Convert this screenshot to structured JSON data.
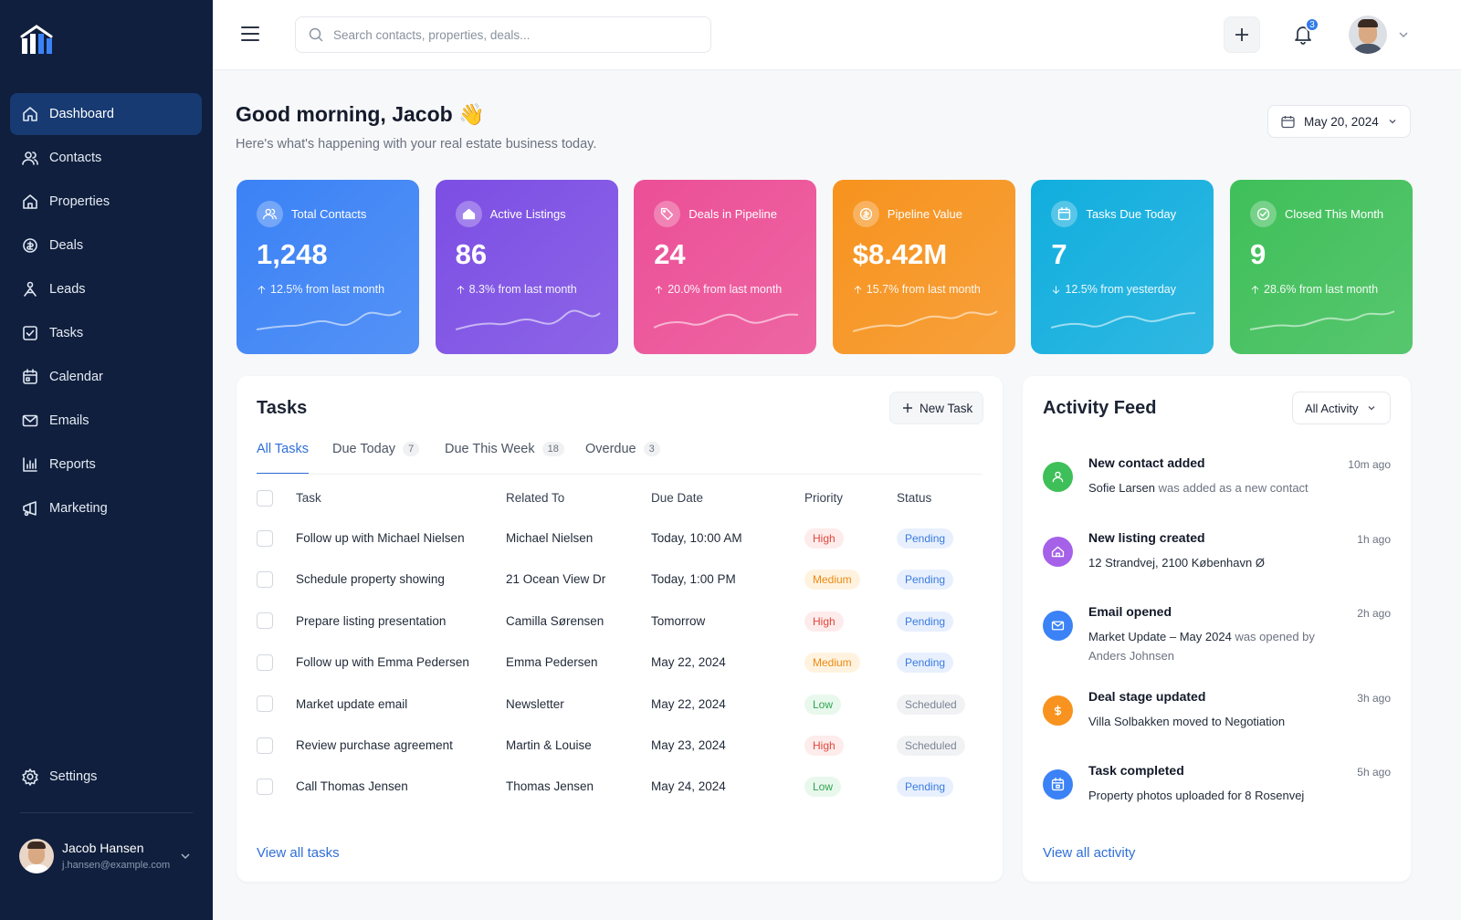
{
  "sidebar": {
    "nav": [
      "Dashboard",
      "Contacts",
      "Properties",
      "Deals",
      "Leads",
      "Tasks",
      "Calendar",
      "Emails",
      "Reports",
      "Marketing"
    ],
    "settings": "Settings",
    "user": {
      "name": "Jacob Hansen",
      "email": "j.hansen@example.com"
    }
  },
  "header": {
    "search_placeholder": "Search contacts, properties, deals...",
    "notification_count": 3
  },
  "greeting": {
    "title": "Good morning, Jacob 👋",
    "subtitle": "Here's what's happening with your real estate business today.",
    "date": "May 20, 2024"
  },
  "stats": [
    {
      "label": "Total Contacts",
      "value": "1,248",
      "change": "12.5% from last month",
      "trend": "up",
      "color": "#3b82f6"
    },
    {
      "label": "Active Listings",
      "value": "86",
      "change": "8.3% from last month",
      "trend": "up",
      "color": "#7c4ee4"
    },
    {
      "label": "Deals in Pipeline",
      "value": "24",
      "change": "20.0% from last month",
      "trend": "up",
      "color": "#ec4f96"
    },
    {
      "label": "Pipeline Value",
      "value": "$8.42M",
      "change": "15.7% from last month",
      "trend": "up",
      "color": "#f7931e"
    },
    {
      "label": "Tasks Due Today",
      "value": "7",
      "change": "12.5% from yesterday",
      "trend": "down",
      "color": "#11aede"
    },
    {
      "label": "Closed This Month",
      "value": "9",
      "change": "28.6% from last month",
      "trend": "up",
      "color": "#3fbf59"
    }
  ],
  "tasks": {
    "title": "Tasks",
    "new_task": "New Task",
    "tabs": [
      {
        "label": "All Tasks"
      },
      {
        "label": "Due Today",
        "count": 7
      },
      {
        "label": "Due This Week",
        "count": 18
      },
      {
        "label": "Overdue",
        "count": 3
      }
    ],
    "columns": [
      "Task",
      "Related To",
      "Due Date",
      "Priority",
      "Status"
    ],
    "rows": [
      [
        "Follow up with Michael Nielsen",
        "Michael Nielsen",
        "Today, 10:00 AM",
        "High",
        "Pending"
      ],
      [
        "Schedule property showing",
        "21 Ocean View Dr",
        "Today, 1:00 PM",
        "Medium",
        "Pending"
      ],
      [
        "Prepare listing presentation",
        "Camilla Sørensen",
        "Tomorrow",
        "High",
        "Pending"
      ],
      [
        "Follow up with Emma Pedersen",
        "Emma Pedersen",
        "May 22, 2024",
        "Medium",
        "Pending"
      ],
      [
        "Market update email",
        "Newsletter",
        "May 22, 2024",
        "Low",
        "Scheduled"
      ],
      [
        "Review purchase agreement",
        "Martin & Louise",
        "May 23, 2024",
        "High",
        "Scheduled"
      ],
      [
        "Call Thomas Jensen",
        "Thomas Jensen",
        "May 24, 2024",
        "Low",
        "Pending"
      ]
    ],
    "view_all": "View all tasks"
  },
  "activity": {
    "title": "Activity Feed",
    "filter": "All Activity",
    "items": [
      {
        "title": "New contact added",
        "subject": "Sofie Larsen",
        "detail": "was added as a new contact",
        "time": "10m ago",
        "color": "#3fbf59"
      },
      {
        "title": "New listing created",
        "subject": "12 Strandvej, 2100 København Ø",
        "time": "1h ago",
        "color": "#a561e8"
      },
      {
        "title": "Email opened",
        "subject": "Market Update – May 2024",
        "detail": "was opened by Anders Johnsen",
        "time": "2h ago",
        "color": "#3b82f6"
      },
      {
        "title": "Deal stage updated",
        "subject": "Villa Solbakken moved to Negotiation",
        "time": "3h ago",
        "color": "#f7931e"
      },
      {
        "title": "Task completed",
        "subject": "Property photos uploaded for 8 Rosenvej",
        "time": "5h ago",
        "color": "#3b82f6"
      }
    ],
    "view_all": "View all activity"
  }
}
